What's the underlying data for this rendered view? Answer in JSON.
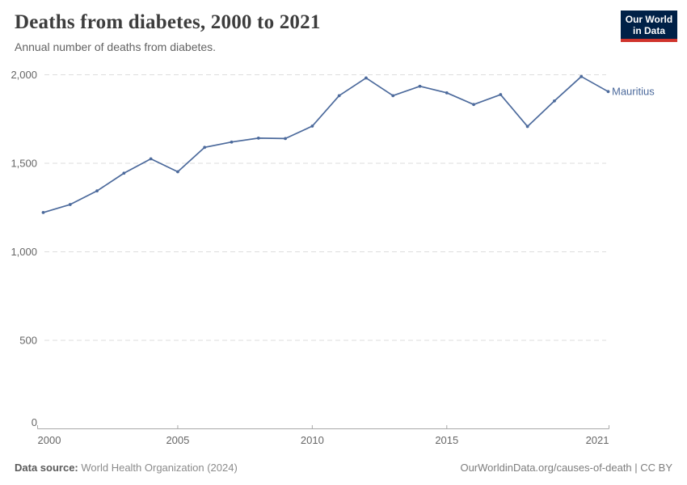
{
  "header": {
    "title": "Deaths from diabetes, 2000 to 2021",
    "subtitle": "Annual number of deaths from diabetes."
  },
  "logo": {
    "line1": "Our World",
    "line2": "in Data"
  },
  "chart_data": {
    "type": "line",
    "title": "Deaths from diabetes, 2000 to 2021",
    "xlabel": "",
    "ylabel": "",
    "x": [
      2000,
      2001,
      2002,
      2003,
      2004,
      2005,
      2006,
      2007,
      2008,
      2009,
      2010,
      2011,
      2012,
      2013,
      2014,
      2015,
      2016,
      2017,
      2018,
      2019,
      2020,
      2021
    ],
    "series": [
      {
        "name": "Mauritius",
        "color": "#4C6A9C",
        "values": [
          1222,
          1267,
          1344,
          1444,
          1525,
          1452,
          1590,
          1620,
          1642,
          1640,
          1710,
          1882,
          1982,
          1882,
          1935,
          1898,
          1832,
          1888,
          1708,
          1852,
          1990,
          1905
        ]
      }
    ],
    "ylim": [
      0,
      2000
    ],
    "yticks": [
      0,
      500,
      1000,
      1500,
      2000
    ],
    "xticks": [
      2000,
      2005,
      2010,
      2015,
      2021
    ],
    "grid": "horizontal-dashed",
    "legend_position": "end-of-line-label"
  },
  "footer": {
    "source_label": "Data source:",
    "source_value": "World Health Organization (2024)",
    "credit": "OurWorldinData.org/causes-of-death | CC BY"
  },
  "colors": {
    "line": "#4C6A9C",
    "grid": "#dddddd",
    "axis": "#a8a8a8",
    "tick_label": "#666666",
    "logo_bg": "#002147",
    "logo_accent": "#D0342C"
  }
}
